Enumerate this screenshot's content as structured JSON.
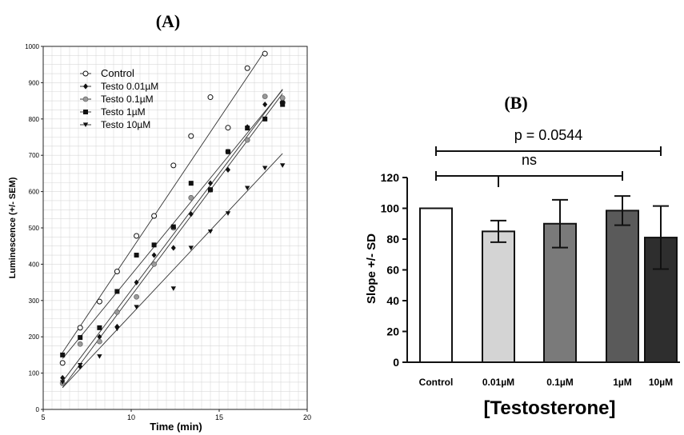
{
  "chart_data": [
    {
      "panel_label": "(A)",
      "type": "scatter",
      "xlabel": "Time (min)",
      "ylabel": "Luminescence (+/- SEM)",
      "xlim": [
        5,
        20
      ],
      "ylim": [
        0,
        1000
      ],
      "x_ticks": [
        5,
        10,
        15,
        20
      ],
      "y_ticks": [
        0,
        100,
        200,
        300,
        400,
        500,
        600,
        700,
        800,
        900,
        1000
      ],
      "grid": true,
      "legend_position": "top-left",
      "x": [
        6.1,
        7.1,
        8.2,
        9.2,
        10.3,
        11.3,
        12.4,
        13.4,
        14.5,
        15.5,
        16.6,
        17.6,
        18.6
      ],
      "series": [
        {
          "name": "Control",
          "marker": "open-circle",
          "color": "#111111",
          "values": [
            128,
            225,
            297,
            380,
            478,
            533,
            672,
            753,
            860,
            776,
            940,
            980,
            845
          ],
          "trend": [
            [
              6.1,
              157
            ],
            [
              17.6,
              988
            ]
          ]
        },
        {
          "name": "Testo 0.01µM",
          "marker": "diamond",
          "color": "#111111",
          "values": [
            87,
            118,
            200,
            228,
            350,
            425,
            445,
            538,
            623,
            660,
            778,
            840,
            848
          ],
          "trend": [
            [
              6.1,
              77
            ],
            [
              18.6,
              882
            ]
          ]
        },
        {
          "name": "Testo 0.1µM",
          "marker": "gray-circle",
          "color": "#8a8a8a",
          "values": [
            72,
            180,
            187,
            268,
            310,
            400,
            500,
            583,
            605,
            710,
            742,
            862,
            858
          ],
          "trend": [
            [
              6.1,
              60
            ],
            [
              18.6,
              870
            ]
          ]
        },
        {
          "name": "Testo 1µM",
          "marker": "square",
          "color": "#111111",
          "values": [
            150,
            198,
            225,
            325,
            425,
            453,
            503,
            623,
            605,
            710,
            775,
            800,
            840
          ],
          "trend": [
            [
              6.1,
              140
            ],
            [
              18.6,
              880
            ]
          ]
        },
        {
          "name": "Testo 10µM",
          "marker": "triangle-down",
          "color": "#111111",
          "values": [
            75,
            122,
            146,
            222,
            282,
            null,
            333,
            445,
            490,
            540,
            610,
            665,
            672
          ],
          "trend": [
            [
              6.1,
              60
            ],
            [
              18.6,
              705
            ]
          ]
        }
      ]
    },
    {
      "panel_label": "(B)",
      "type": "bar",
      "xlabel": "[Testosterone]",
      "ylabel": "Slope +/- SD",
      "ylim": [
        0,
        120
      ],
      "y_ticks": [
        0,
        20,
        40,
        60,
        80,
        100,
        120
      ],
      "categories": [
        "Control",
        "0.01µM",
        "0.1µM",
        "1µM",
        "10µM"
      ],
      "values": [
        100,
        85,
        90,
        98.5,
        81
      ],
      "errors": [
        0,
        7,
        15.5,
        9.5,
        20.5
      ],
      "colors": [
        "#ffffff",
        "#d4d4d4",
        "#7a7a7a",
        "#5a5a5a",
        "#2e2e2e"
      ],
      "annotations": [
        {
          "text": "p = 0.0544",
          "from": "Control",
          "to": "10µM",
          "level": "upper"
        },
        {
          "text": "ns",
          "from": "Control",
          "to": "1µM",
          "level": "lower"
        }
      ]
    }
  ]
}
